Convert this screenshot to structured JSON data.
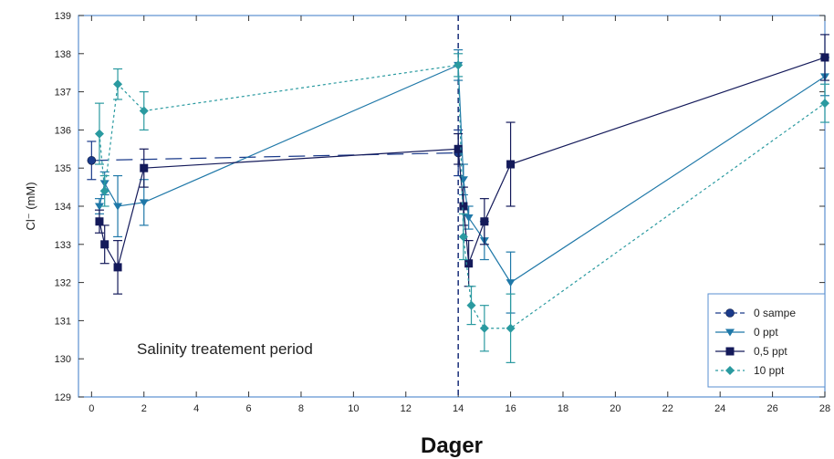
{
  "chart_data": {
    "type": "line",
    "xlabel": "Dager",
    "ylabel": "Cl⁻ (mM)",
    "xlim": [
      -0.5,
      28
    ],
    "ylim": [
      129,
      139
    ],
    "xticks": [
      0,
      2,
      4,
      6,
      8,
      10,
      12,
      14,
      16,
      18,
      20,
      22,
      24,
      26,
      28
    ],
    "xtick_labels": [
      "0",
      "2",
      "4",
      "6",
      "8",
      "10",
      "12",
      "14",
      "16",
      "18",
      "20",
      "22",
      "24",
      "26",
      "28"
    ],
    "yticks": [
      129,
      130,
      131,
      132,
      133,
      134,
      135,
      136,
      137,
      138,
      139
    ],
    "ytick_labels": [
      "129",
      "130",
      "131",
      "132",
      "133",
      "134",
      "135",
      "136",
      "137",
      "138",
      "139"
    ],
    "vline_x": 14,
    "annotation": "Salinity treatement period",
    "legend_position": "bottom-right",
    "series": [
      {
        "name": "0 sampe",
        "color": "#1a3a8a",
        "marker": "circle",
        "points": [
          [
            0,
            135.2,
            0.5
          ],
          [
            14,
            135.4,
            0.6
          ]
        ]
      },
      {
        "name": "0 ppt",
        "color": "#1f78a8",
        "marker": "triangle-down",
        "points": [
          [
            0.3,
            134.0,
            0.2
          ],
          [
            0.5,
            134.6,
            0.3
          ],
          [
            1,
            134.0,
            0.8
          ],
          [
            2,
            134.1,
            0.6
          ],
          [
            14,
            137.7,
            0.4
          ],
          [
            14.2,
            134.7,
            0.4
          ],
          [
            14.4,
            133.7,
            0.3
          ],
          [
            15,
            133.1,
            0.5
          ],
          [
            16,
            132.0,
            0.8
          ],
          [
            28,
            137.4,
            0.5
          ]
        ]
      },
      {
        "name": "0,5 ppt",
        "color": "#141a5a",
        "marker": "square",
        "points": [
          [
            0.3,
            133.6,
            0.3
          ],
          [
            0.5,
            133.0,
            0.5
          ],
          [
            1,
            132.4,
            0.7
          ],
          [
            2,
            135.0,
            0.5
          ],
          [
            14,
            135.5,
            0.4
          ],
          [
            14.2,
            134.0,
            0.5
          ],
          [
            14.4,
            132.5,
            0.6
          ],
          [
            15,
            133.6,
            0.6
          ],
          [
            16,
            135.1,
            1.1
          ],
          [
            28,
            137.9,
            0.6
          ]
        ]
      },
      {
        "name": "10 ppt",
        "color": "#2a9aa0",
        "marker": "diamond",
        "points": [
          [
            0.3,
            135.9,
            0.8
          ],
          [
            0.5,
            134.4,
            0.4
          ],
          [
            1,
            137.2,
            0.4
          ],
          [
            2,
            136.5,
            0.5
          ],
          [
            14,
            137.7,
            0.3
          ],
          [
            14.2,
            133.2,
            0.6
          ],
          [
            14.5,
            131.4,
            0.5
          ],
          [
            15,
            130.8,
            0.6
          ],
          [
            16,
            130.8,
            0.9
          ],
          [
            28,
            136.7,
            0.5
          ]
        ]
      }
    ]
  }
}
